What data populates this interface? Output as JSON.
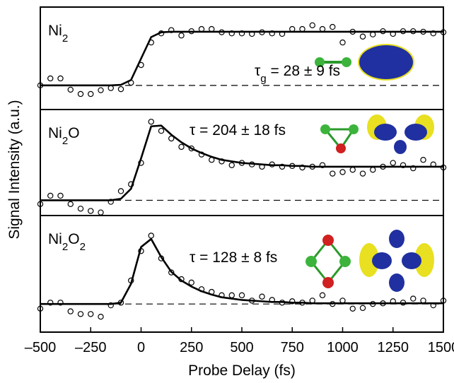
{
  "chart_data": [
    {
      "type": "scatter",
      "label": [
        {
          "text": "Ni"
        },
        {
          "text": "2",
          "sub": true
        }
      ],
      "annotation": [
        {
          "text": "τ"
        },
        {
          "text": "g",
          "sub": true
        },
        {
          "text": " = 28 ± 9 fs"
        }
      ],
      "ylabel": "Signal Intensity (a.u.)",
      "xlim": [
        -500,
        1500
      ],
      "ylim": [
        -0.45,
        1.46
      ],
      "hline": 0,
      "x": [
        -500,
        -450,
        -400,
        -350,
        -300,
        -250,
        -200,
        -150,
        -100,
        -50,
        0,
        50,
        100,
        150,
        200,
        250,
        300,
        350,
        400,
        450,
        500,
        550,
        600,
        650,
        700,
        750,
        800,
        850,
        900,
        950,
        1000,
        1050,
        1100,
        1150,
        1200,
        1250,
        1300,
        1350,
        1400,
        1450,
        1500
      ],
      "series": [
        {
          "style": "marker",
          "color": "#000000",
          "values": [
            0,
            0.13,
            0.13,
            -0.08,
            -0.16,
            -0.16,
            -0.09,
            -0.05,
            -0.07,
            0.05,
            0.38,
            0.8,
            0.97,
            1.03,
            0.93,
            1.01,
            1.05,
            1.05,
            0.99,
            0.97,
            0.97,
            0.96,
            0.99,
            0.97,
            0.96,
            1.05,
            1.05,
            1.12,
            1.05,
            1.09,
            0.8,
            1.0,
            0.91,
            0.95,
            1.01,
            0.96,
            1.01,
            1.01,
            1.0,
            0.97,
            0.99
          ]
        },
        {
          "style": "line",
          "color": "#000000",
          "values": [
            0,
            0,
            0,
            0,
            0,
            0,
            0,
            0,
            0.01,
            0.1,
            0.5,
            0.9,
            0.99,
            1,
            1,
            1,
            1,
            1,
            1,
            1,
            1,
            1,
            1,
            1,
            1,
            1,
            1,
            1,
            1,
            1,
            1,
            1,
            1,
            1,
            1,
            1,
            1,
            1,
            1,
            1,
            1
          ]
        }
      ]
    },
    {
      "type": "scatter",
      "label": [
        {
          "text": "Ni"
        },
        {
          "text": "2",
          "sub": true
        },
        {
          "text": "O"
        }
      ],
      "annotation": [
        {
          "text": "τ = 204 ± 18 fs"
        }
      ],
      "xlim": [
        -500,
        1500
      ],
      "ylim": [
        -0.2,
        1.19
      ],
      "hline": 0,
      "x": [
        -500,
        -450,
        -400,
        -350,
        -300,
        -250,
        -200,
        -150,
        -100,
        -50,
        0,
        50,
        100,
        150,
        200,
        250,
        300,
        350,
        400,
        450,
        500,
        550,
        600,
        650,
        700,
        750,
        800,
        850,
        900,
        950,
        1000,
        1050,
        1100,
        1150,
        1200,
        1250,
        1300,
        1350,
        1400,
        1450,
        1500
      ],
      "series": [
        {
          "style": "marker",
          "color": "#000000",
          "values": [
            -0.05,
            0.06,
            0.06,
            -0.05,
            -0.11,
            -0.14,
            -0.16,
            -0.02,
            0.12,
            0.21,
            0.49,
            1.03,
            0.91,
            0.81,
            0.7,
            0.68,
            0.6,
            0.53,
            0.51,
            0.46,
            0.49,
            0.47,
            0.44,
            0.47,
            0.44,
            0.45,
            0.43,
            0.44,
            0.46,
            0.35,
            0.37,
            0.4,
            0.35,
            0.4,
            0.44,
            0.49,
            0.46,
            0.42,
            0.53,
            0.47,
            0.43
          ]
        },
        {
          "style": "line",
          "color": "#000000",
          "values": [
            0,
            0,
            0,
            0,
            0,
            0,
            0,
            0,
            0.02,
            0.15,
            0.55,
            0.97,
            0.98,
            0.86,
            0.76,
            0.68,
            0.62,
            0.57,
            0.53,
            0.51,
            0.49,
            0.48,
            0.47,
            0.46,
            0.46,
            0.45,
            0.45,
            0.44,
            0.44,
            0.44,
            0.44,
            0.44,
            0.44,
            0.44,
            0.44,
            0.44,
            0.44,
            0.44,
            0.44,
            0.44,
            0.44
          ]
        }
      ]
    },
    {
      "type": "scatter",
      "label": [
        {
          "text": "Ni"
        },
        {
          "text": "2",
          "sub": true
        },
        {
          "text": "O"
        },
        {
          "text": "2",
          "sub": true
        }
      ],
      "annotation": [
        {
          "text": "τ = 128 ± 8 fs"
        }
      ],
      "xlabel": "Probe Delay (fs)",
      "xlim": [
        -500,
        1500
      ],
      "ylim": [
        -0.42,
        1.32
      ],
      "hline": 0,
      "xticks": [
        {
          "value": -500,
          "label": "–500"
        },
        {
          "value": -250,
          "label": "–250"
        },
        0,
        250,
        500,
        750,
        1000,
        1250,
        1500
      ],
      "x": [
        -500,
        -450,
        -400,
        -350,
        -300,
        -250,
        -200,
        -150,
        -100,
        -50,
        0,
        50,
        100,
        150,
        200,
        250,
        300,
        350,
        400,
        450,
        500,
        550,
        600,
        650,
        700,
        750,
        800,
        850,
        900,
        950,
        1000,
        1050,
        1100,
        1150,
        1200,
        1250,
        1300,
        1350,
        1400,
        1450,
        1500
      ],
      "series": [
        {
          "style": "marker",
          "color": "#000000",
          "values": [
            -0.07,
            0.02,
            0.02,
            -0.11,
            -0.15,
            -0.15,
            -0.19,
            -0.02,
            0.02,
            0.35,
            0.79,
            1.02,
            0.68,
            0.47,
            0.37,
            0.32,
            0.22,
            0.18,
            0.13,
            0.13,
            0.13,
            0.05,
            0.11,
            0.06,
            0.02,
            0.04,
            0.02,
            0.05,
            0.13,
            0,
            0.05,
            -0.07,
            -0.06,
            0,
            0.01,
            0.04,
            0.02,
            0.08,
            0.05,
            -0.02,
            0.05
          ]
        },
        {
          "style": "line",
          "color": "#000000",
          "values": [
            0,
            0,
            0,
            0,
            0,
            0,
            0,
            0,
            0.02,
            0.3,
            0.85,
            0.97,
            0.7,
            0.48,
            0.35,
            0.26,
            0.19,
            0.14,
            0.1,
            0.08,
            0.06,
            0.05,
            0.04,
            0.03,
            0.03,
            0.02,
            0.02,
            0.01,
            0.01,
            0.01,
            0.01,
            0.01,
            0.01,
            0.01,
            0.01,
            0.01,
            0.01,
            0.01,
            0.01,
            0.01,
            0.01
          ]
        }
      ]
    }
  ]
}
